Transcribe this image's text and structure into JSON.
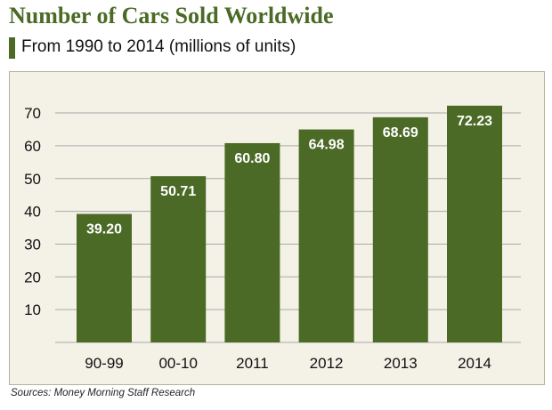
{
  "header": {
    "title": "Number of Cars Sold Worldwide",
    "subtitle": "From 1990 to 2014 (millions of units)"
  },
  "footer": {
    "source_prefix": "Sources: Money Morning",
    "source_suffix": "Staff Research"
  },
  "colors": {
    "bar": "#4a6a25",
    "title": "#4a6a25",
    "plot_background": "#f4f1e7",
    "gridline": "#a9a9a9"
  },
  "chart_data": {
    "type": "bar",
    "title": "Number of Cars Sold Worldwide",
    "subtitle": "From 1990 to 2014 (millions of units)",
    "categories": [
      "90-99",
      "00-10",
      "2011",
      "2012",
      "2013",
      "2014"
    ],
    "values": [
      39.2,
      50.71,
      60.8,
      64.98,
      68.69,
      72.23
    ],
    "value_labels": [
      "39.20",
      "50.71",
      "60.80",
      "64.98",
      "68.69",
      "72.23"
    ],
    "y_ticks": [
      10,
      20,
      30,
      40,
      50,
      60,
      70
    ],
    "ylim": [
      0,
      75
    ],
    "grid": true,
    "xlabel": "",
    "ylabel": ""
  }
}
